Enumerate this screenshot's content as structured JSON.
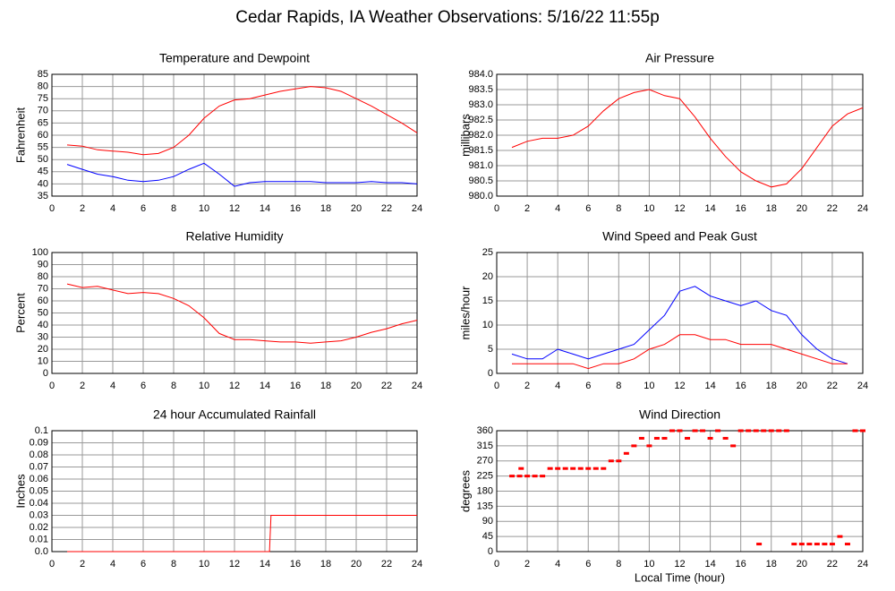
{
  "title": "Cedar Rapids, IA Weather Observations: 5/16/22 11:55p",
  "chart_data": [
    {
      "type": "line",
      "title": "Temperature and Dewpoint",
      "ylabel": "Fahrenheit",
      "x": [
        1,
        2,
        3,
        4,
        5,
        6,
        7,
        8,
        9,
        10,
        11,
        12,
        13,
        14,
        15,
        16,
        17,
        18,
        19,
        20,
        21,
        22,
        23,
        24
      ],
      "series": [
        {
          "color": "#ff0000",
          "values": [
            56,
            55.5,
            54,
            53.5,
            53,
            52,
            52.5,
            55,
            60,
            67,
            72,
            74.5,
            75,
            76.5,
            78,
            79,
            80,
            79.5,
            78,
            75,
            72,
            68.5,
            65,
            61
          ]
        },
        {
          "color": "#0000ff",
          "values": [
            48,
            46,
            44,
            43,
            41.5,
            41,
            41.5,
            43,
            46,
            48.5,
            44,
            39,
            40.5,
            41,
            41,
            41,
            41,
            40.5,
            40.5,
            40.5,
            41,
            40.5,
            40.5,
            40
          ]
        }
      ],
      "xlim": [
        0,
        24
      ],
      "xticks": [
        0,
        2,
        4,
        6,
        8,
        10,
        12,
        14,
        16,
        18,
        20,
        22,
        24
      ],
      "ylim": [
        35,
        85
      ],
      "yticks": [
        35,
        40,
        45,
        50,
        55,
        60,
        65,
        70,
        75,
        80,
        85
      ],
      "grid": true
    },
    {
      "type": "line",
      "title": "Air Pressure",
      "ylabel": "millibars",
      "x": [
        1,
        2,
        3,
        4,
        5,
        6,
        7,
        8,
        9,
        10,
        11,
        12,
        13,
        14,
        15,
        16,
        17,
        18,
        19,
        20,
        21,
        22,
        23,
        24
      ],
      "series": [
        {
          "color": "#ff0000",
          "values": [
            981.6,
            981.8,
            981.9,
            981.9,
            982.0,
            982.3,
            982.8,
            983.2,
            983.4,
            983.5,
            983.3,
            983.2,
            982.6,
            981.9,
            981.3,
            980.8,
            980.5,
            980.3,
            980.4,
            980.9,
            981.6,
            982.3,
            982.7,
            982.9
          ]
        }
      ],
      "xlim": [
        0,
        24
      ],
      "xticks": [
        0,
        2,
        4,
        6,
        8,
        10,
        12,
        14,
        16,
        18,
        20,
        22,
        24
      ],
      "ylim": [
        980,
        984
      ],
      "yticks": [
        {
          "value": 980,
          "label": "980.0"
        },
        980.5,
        {
          "value": 981,
          "label": "981.0"
        },
        981.5,
        {
          "value": 982,
          "label": "982.0"
        },
        982.5,
        {
          "value": 983,
          "label": "983.0"
        },
        983.5,
        {
          "value": 984,
          "label": "984.0"
        }
      ],
      "grid": true
    },
    {
      "type": "line",
      "title": "Relative Humidity",
      "ylabel": "Percent",
      "x": [
        1,
        2,
        3,
        4,
        5,
        6,
        7,
        8,
        9,
        10,
        11,
        12,
        13,
        14,
        15,
        16,
        17,
        18,
        19,
        20,
        21,
        22,
        23,
        24
      ],
      "series": [
        {
          "color": "#ff0000",
          "values": [
            74,
            71,
            72,
            69,
            66,
            67,
            66,
            62,
            56,
            46,
            33,
            28,
            28,
            27,
            26,
            26,
            25,
            26,
            27,
            30,
            34,
            37,
            41,
            44
          ]
        }
      ],
      "xlim": [
        0,
        24
      ],
      "xticks": [
        0,
        2,
        4,
        6,
        8,
        10,
        12,
        14,
        16,
        18,
        20,
        22,
        24
      ],
      "ylim": [
        0,
        100
      ],
      "yticks": [
        0,
        10,
        20,
        30,
        40,
        50,
        60,
        70,
        80,
        90,
        100
      ],
      "grid": true
    },
    {
      "type": "line",
      "title": "Wind Speed and Peak Gust",
      "ylabel": "miles/hour",
      "x": [
        1,
        2,
        3,
        4,
        5,
        6,
        7,
        8,
        9,
        10,
        11,
        12,
        13,
        14,
        15,
        16,
        17,
        18,
        19,
        20,
        21,
        22,
        23
      ],
      "series": [
        {
          "color": "#0000ff",
          "values": [
            4,
            3,
            3,
            5,
            4,
            3,
            4,
            5,
            6,
            9,
            12,
            17,
            18,
            16,
            15,
            14,
            15,
            13,
            12,
            8,
            5,
            3,
            2
          ]
        },
        {
          "color": "#ff0000",
          "values": [
            2,
            2,
            2,
            2,
            2,
            1,
            2,
            2,
            3,
            5,
            6,
            8,
            8,
            7,
            7,
            6,
            6,
            6,
            5,
            4,
            3,
            2,
            2
          ]
        }
      ],
      "xlim": [
        0,
        24
      ],
      "xticks": [
        0,
        2,
        4,
        6,
        8,
        10,
        12,
        14,
        16,
        18,
        20,
        22,
        24
      ],
      "ylim": [
        0,
        25
      ],
      "yticks": [
        0,
        5,
        10,
        15,
        20,
        25
      ],
      "grid": true
    },
    {
      "type": "line",
      "title": "24 hour Accumulated Rainfall",
      "ylabel": "Inches",
      "x": [
        1,
        14.3,
        14.4,
        24
      ],
      "series": [
        {
          "color": "#ff0000",
          "values": [
            0,
            0,
            0.03,
            0.03
          ]
        }
      ],
      "xlim": [
        0,
        24
      ],
      "xticks": [
        0,
        2,
        4,
        6,
        8,
        10,
        12,
        14,
        16,
        18,
        20,
        22,
        24
      ],
      "ylim": [
        0,
        0.1
      ],
      "yticks": [
        {
          "value": 0,
          "label": "0.0"
        },
        0.01,
        0.02,
        0.03,
        0.04,
        0.05,
        0.06,
        0.07,
        0.08,
        0.09,
        0.1
      ],
      "grid": true
    },
    {
      "type": "scatter",
      "title": "Wind Direction",
      "ylabel": "degrees",
      "xlabel": "Local Time (hour)",
      "x": [
        1.0,
        1.5,
        1.6,
        2.0,
        2.5,
        3.0,
        3.5,
        4.0,
        4.5,
        5.0,
        5.5,
        6.0,
        6.5,
        7.0,
        7.5,
        8.0,
        8.5,
        9.0,
        9.5,
        10.0,
        10.5,
        11.0,
        11.5,
        12.0,
        12.5,
        13.0,
        13.5,
        14.0,
        14.5,
        15.0,
        15.5,
        16.0,
        16.5,
        17.0,
        17.2,
        17.5,
        18.0,
        18.5,
        19.0,
        19.5,
        20.0,
        20.5,
        21.0,
        21.5,
        22.0,
        22.5,
        23.0,
        23.5,
        24.0
      ],
      "series": [
        {
          "color": "#ff0000",
          "values": [
            225,
            225,
            247.5,
            225,
            225,
            225,
            247.5,
            247.5,
            247.5,
            247.5,
            247.5,
            247.5,
            247.5,
            247.5,
            270,
            270,
            292.5,
            315,
            337.5,
            315,
            337.5,
            337.5,
            360,
            360,
            337.5,
            360,
            360,
            337.5,
            360,
            337.5,
            315,
            360,
            360,
            360,
            22.5,
            360,
            360,
            360,
            360,
            22.5,
            22.5,
            22.5,
            22.5,
            22.5,
            22.5,
            45,
            22.5,
            360,
            360
          ]
        }
      ],
      "xlim": [
        0,
        24
      ],
      "xticks": [
        0,
        2,
        4,
        6,
        8,
        10,
        12,
        14,
        16,
        18,
        20,
        22,
        24
      ],
      "ylim": [
        0,
        360
      ],
      "yticks": [
        0,
        45,
        90,
        135,
        180,
        225,
        270,
        315,
        360
      ],
      "grid": true
    }
  ]
}
